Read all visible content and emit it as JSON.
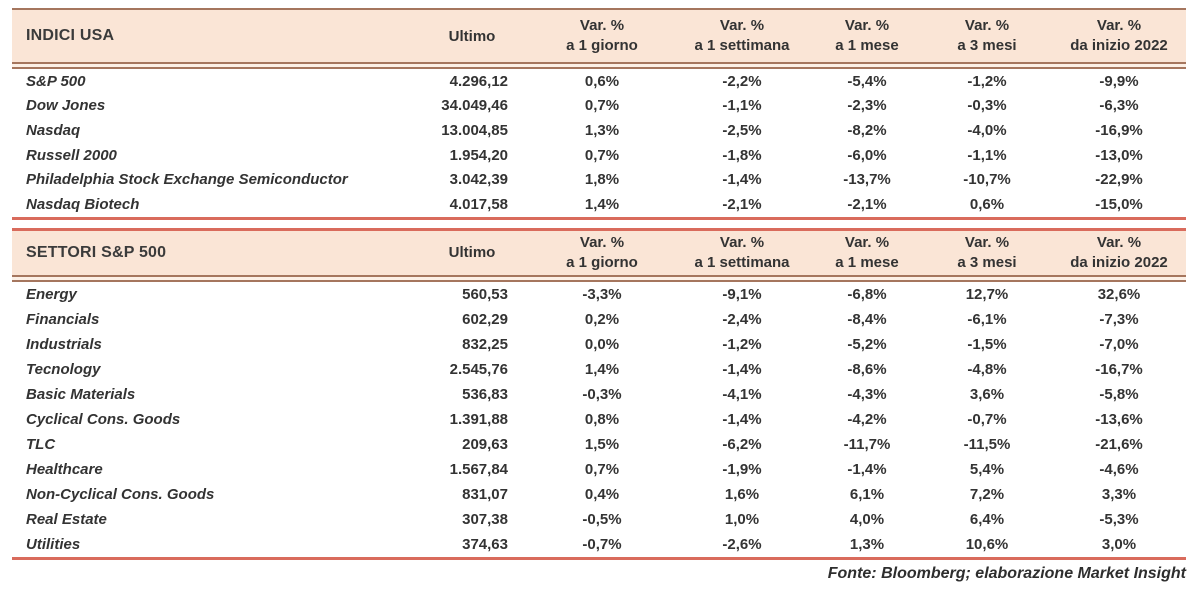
{
  "chart_data": [
    {
      "type": "table",
      "title": "INDICI USA",
      "columns": [
        "Ultimo",
        "Var. % a 1 giorno",
        "Var. % a 1 settimana",
        "Var. % a 1 mese",
        "Var. % a 3 mesi",
        "Var. % da inizio 2022"
      ],
      "rows": [
        {
          "label": "S&P 500",
          "ultimo": "4.296,12",
          "vars": [
            "0,6%",
            "-2,2%",
            "-5,4%",
            "-1,2%",
            "-9,9%"
          ]
        },
        {
          "label": "Dow Jones",
          "ultimo": "34.049,46",
          "vars": [
            "0,7%",
            "-1,1%",
            "-2,3%",
            "-0,3%",
            "-6,3%"
          ]
        },
        {
          "label": "Nasdaq",
          "ultimo": "13.004,85",
          "vars": [
            "1,3%",
            "-2,5%",
            "-8,2%",
            "-4,0%",
            "-16,9%"
          ]
        },
        {
          "label": "Russell 2000",
          "ultimo": "1.954,20",
          "vars": [
            "0,7%",
            "-1,8%",
            "-6,0%",
            "-1,1%",
            "-13,0%"
          ]
        },
        {
          "label": "Philadelphia Stock Exchange Semiconductor",
          "ultimo": "3.042,39",
          "vars": [
            "1,8%",
            "-1,4%",
            "-13,7%",
            "-10,7%",
            "-22,9%"
          ]
        },
        {
          "label": "Nasdaq Biotech",
          "ultimo": "4.017,58",
          "vars": [
            "1,4%",
            "-2,1%",
            "-2,1%",
            "0,6%",
            "-15,0%"
          ]
        }
      ]
    },
    {
      "type": "table",
      "title": "SETTORI S&P 500",
      "columns": [
        "Ultimo",
        "Var. % a 1 giorno",
        "Var. % a 1 settimana",
        "Var. % a 1 mese",
        "Var. % a 3 mesi",
        "Var. % da inizio 2022"
      ],
      "rows": [
        {
          "label": "Energy",
          "ultimo": "560,53",
          "vars": [
            "-3,3%",
            "-9,1%",
            "-6,8%",
            "12,7%",
            "32,6%"
          ]
        },
        {
          "label": "Financials",
          "ultimo": "602,29",
          "vars": [
            "0,2%",
            "-2,4%",
            "-8,4%",
            "-6,1%",
            "-7,3%"
          ]
        },
        {
          "label": "Industrials",
          "ultimo": "832,25",
          "vars": [
            "0,0%",
            "-1,2%",
            "-5,2%",
            "-1,5%",
            "-7,0%"
          ]
        },
        {
          "label": "Tecnology",
          "ultimo": "2.545,76",
          "vars": [
            "1,4%",
            "-1,4%",
            "-8,6%",
            "-4,8%",
            "-16,7%"
          ]
        },
        {
          "label": "Basic Materials",
          "ultimo": "536,83",
          "vars": [
            "-0,3%",
            "-4,1%",
            "-4,3%",
            "3,6%",
            "-5,8%"
          ]
        },
        {
          "label": "Cyclical Cons. Goods",
          "ultimo": "1.391,88",
          "vars": [
            "0,8%",
            "-1,4%",
            "-4,2%",
            "-0,7%",
            "-13,6%"
          ]
        },
        {
          "label": "TLC",
          "ultimo": "209,63",
          "vars": [
            "1,5%",
            "-6,2%",
            "-11,7%",
            "-11,5%",
            "-21,6%"
          ]
        },
        {
          "label": "Healthcare",
          "ultimo": "1.567,84",
          "vars": [
            "0,7%",
            "-1,9%",
            "-1,4%",
            "5,4%",
            "-4,6%"
          ]
        },
        {
          "label": "Non-Cyclical Cons. Goods",
          "ultimo": "831,07",
          "vars": [
            "0,4%",
            "1,6%",
            "6,1%",
            "7,2%",
            "3,3%"
          ]
        },
        {
          "label": "Real Estate",
          "ultimo": "307,38",
          "vars": [
            "-0,5%",
            "1,0%",
            "4,0%",
            "6,4%",
            "-5,3%"
          ]
        },
        {
          "label": "Utilities",
          "ultimo": "374,63",
          "vars": [
            "-0,7%",
            "-2,6%",
            "1,3%",
            "10,6%",
            "3,0%"
          ]
        }
      ]
    }
  ],
  "column_headers": {
    "ultimo": "Ultimo",
    "variations": [
      {
        "top": "Var. %",
        "bottom": "a 1 giorno"
      },
      {
        "top": "Var. %",
        "bottom": "a 1 settimana"
      },
      {
        "top": "Var. %",
        "bottom": "a 1 mese"
      },
      {
        "top": "Var. %",
        "bottom": "a 3 mesi"
      },
      {
        "top": "Var. %",
        "bottom": "da inizio 2022"
      }
    ]
  },
  "footer": {
    "source_note": "Fonte: Bloomberg; elaborazione Market Insight"
  },
  "colors": {
    "header_bg": "#FAE5D6",
    "rule_single": "#D96B5C",
    "rule_double": "#A5765E",
    "text": "#333333"
  }
}
